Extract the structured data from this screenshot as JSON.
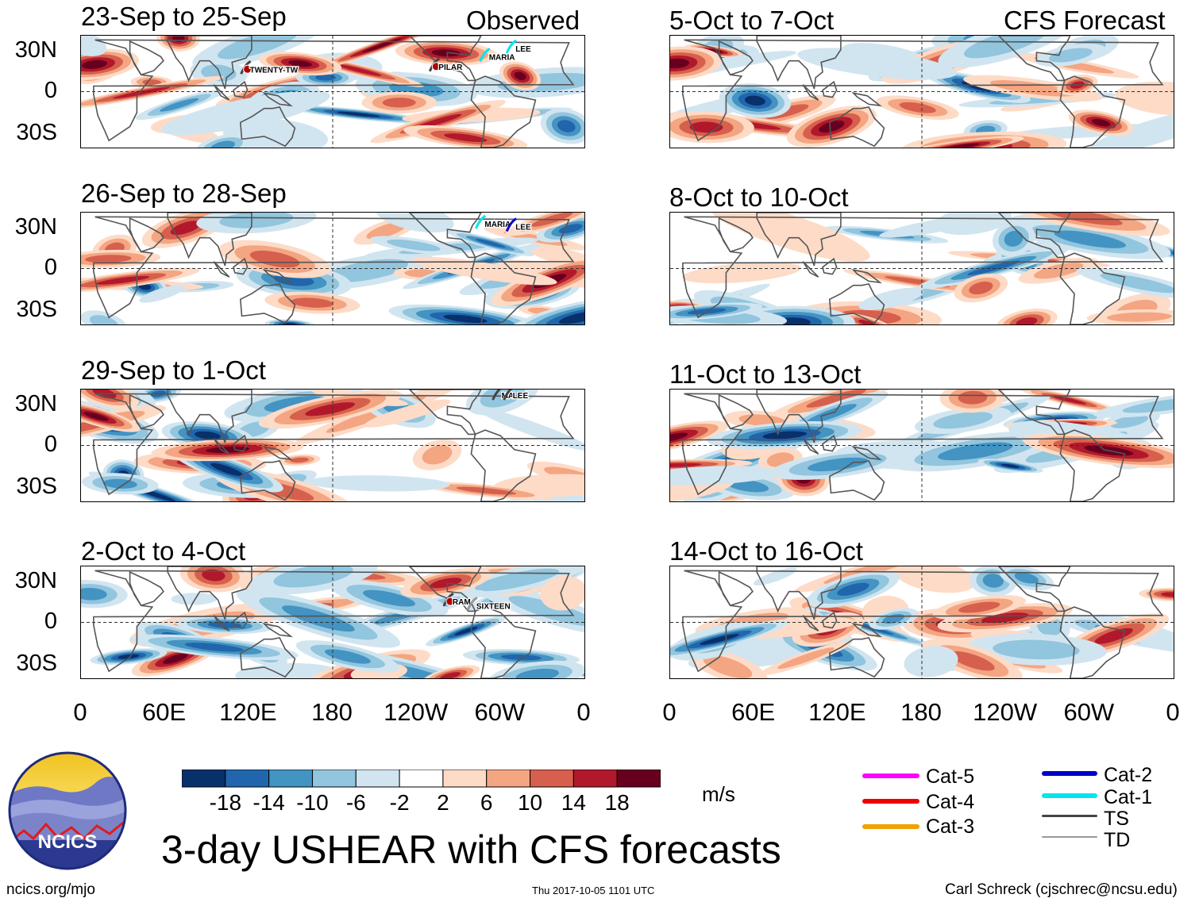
{
  "observed_tag": "Observed",
  "forecast_tag": "CFS Forecast",
  "panels_left": [
    {
      "title": "23-Sep to 25-Sep",
      "storms": [
        {
          "name": "TWENTY-TW",
          "lon": 119,
          "lat": 16,
          "cat": "TS",
          "marker": "22"
        },
        {
          "name": "PILAR",
          "lon": 254,
          "lat": 18,
          "cat": "TS",
          "marker": "S"
        },
        {
          "name": "MARIA",
          "lon": 290,
          "lat": 25,
          "cat": "Cat-1"
        },
        {
          "name": "LEE",
          "lon": 309,
          "lat": 31,
          "cat": "Cat-1"
        }
      ]
    },
    {
      "title": "26-Sep to 28-Sep",
      "storms": [
        {
          "name": "MARIA",
          "lon": 287,
          "lat": 32,
          "cat": "Cat-1"
        },
        {
          "name": "LEE",
          "lon": 309,
          "lat": 30,
          "cat": "Cat-2"
        }
      ]
    },
    {
      "title": "29-Sep to 1-Oct",
      "storms": [
        {
          "name": "MA",
          "lon": 299,
          "lat": 36,
          "cat": "TS"
        },
        {
          "name": "LEE",
          "lon": 307,
          "lat": 36,
          "cat": "TS"
        }
      ]
    },
    {
      "title": "2-Oct to 4-Oct",
      "storms": [
        {
          "name": "RAM",
          "lon": 264,
          "lat": 15,
          "cat": "TS",
          "marker": "S"
        },
        {
          "name": "SIXTEEN",
          "lon": 281,
          "lat": 12,
          "cat": "TD"
        }
      ]
    }
  ],
  "panels_right": [
    {
      "title": "5-Oct to 7-Oct"
    },
    {
      "title": "8-Oct to 10-Oct"
    },
    {
      "title": "11-Oct to 13-Oct"
    },
    {
      "title": "14-Oct to 16-Oct"
    }
  ],
  "lat_labels": [
    "30N",
    "0",
    "30S"
  ],
  "lon_labels": [
    "0",
    "60E",
    "120E",
    "180",
    "120W",
    "60W",
    "0"
  ],
  "colorbar": {
    "colors": [
      "#08306b",
      "#2166ac",
      "#4393c3",
      "#92c5de",
      "#d1e5f0",
      "#ffffff",
      "#fddbc7",
      "#f4a582",
      "#d6604d",
      "#b2182b",
      "#67001f"
    ],
    "labels": [
      "-18",
      "-14",
      "-10",
      "-6",
      "-2",
      "2",
      "6",
      "10",
      "14",
      "18"
    ],
    "units": "m/s"
  },
  "legend": [
    {
      "label": "Cat-5",
      "color": "#ff00ff"
    },
    {
      "label": "Cat-4",
      "color": "#ee0000"
    },
    {
      "label": "Cat-3",
      "color": "#f0a000"
    },
    {
      "label": "Cat-2",
      "color": "#0000cc"
    },
    {
      "label": "Cat-1",
      "color": "#00e5ee"
    },
    {
      "label": "TS",
      "color": "#444444"
    },
    {
      "label": "TD",
      "color": "#999999"
    }
  ],
  "logo_text": "NCICS",
  "main_title": "3-day USHEAR with CFS forecasts",
  "footer_left": "ncics.org/mjo",
  "footer_center": "Thu 2017-10-05 1101 UTC",
  "footer_right": "Carl Schreck (cjschrec@ncsu.edu)"
}
